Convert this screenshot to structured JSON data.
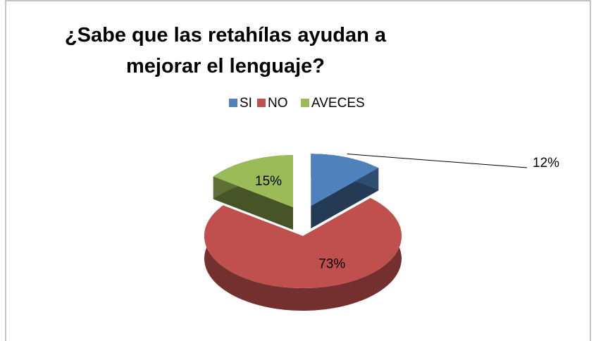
{
  "chart_data": {
    "type": "pie3d",
    "title": "¿Sabe que las retahílas ayudan a mejorar el lenguaje?",
    "categories": [
      "SI",
      "NO",
      "AVECES"
    ],
    "values": [
      12,
      73,
      15
    ],
    "value_labels": [
      "12%",
      "73%",
      "15%"
    ],
    "colors": [
      "#4f81bd",
      "#c0504d",
      "#9bbb59"
    ],
    "legend": "top"
  }
}
